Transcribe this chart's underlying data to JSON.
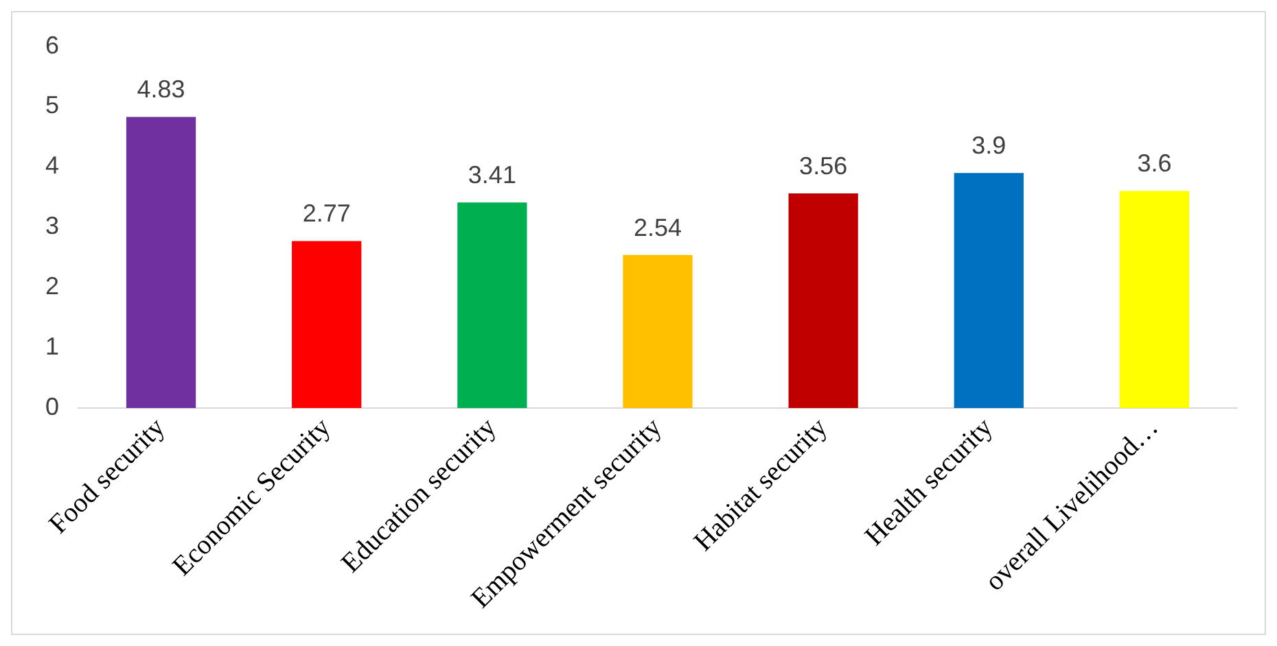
{
  "chart_data": {
    "type": "bar",
    "categories": [
      "Food security",
      "Economic Security",
      "Education security",
      "Empowerment security",
      "Habitat security",
      "Health security",
      "overall Livelihood…"
    ],
    "values": [
      4.83,
      2.77,
      3.41,
      2.54,
      3.56,
      3.9,
      3.6
    ],
    "colors": [
      "#7030a0",
      "#ff0000",
      "#00b050",
      "#ffc000",
      "#c00000",
      "#0070c0",
      "#ffff00"
    ],
    "ylim": [
      0,
      6
    ],
    "yticks": [
      0,
      1,
      2,
      3,
      4,
      5,
      6
    ],
    "grid": false,
    "legend": false,
    "data_labels": true
  }
}
